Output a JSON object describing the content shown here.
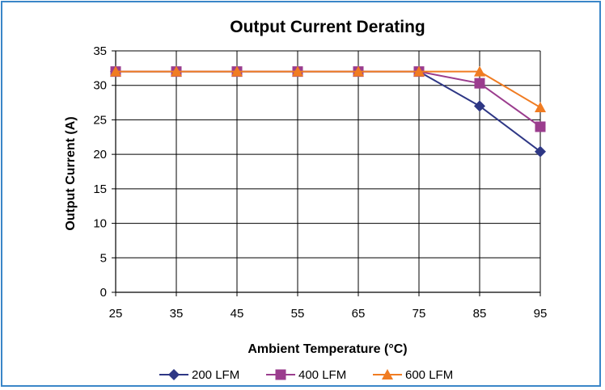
{
  "chart_data": {
    "type": "line",
    "title": "Output Current Derating",
    "xlabel": "Ambient Temperature (°C)",
    "ylabel": "Output Current (A)",
    "x": [
      25,
      35,
      45,
      55,
      65,
      75,
      85,
      95
    ],
    "ylim": [
      0,
      35
    ],
    "yticks": [
      0,
      5,
      10,
      15,
      20,
      25,
      30,
      35
    ],
    "grid": true,
    "legend": "bottom",
    "series": [
      {
        "name": "200 LFM",
        "marker": "diamond",
        "color": "#2e3785",
        "values": [
          32,
          32,
          32,
          32,
          32,
          32,
          27,
          20.4
        ]
      },
      {
        "name": "400 LFM",
        "marker": "square",
        "color": "#9b3d8e",
        "values": [
          32,
          32,
          32,
          32,
          32,
          32,
          30.3,
          24
        ]
      },
      {
        "name": "600 LFM",
        "marker": "triangle",
        "color": "#f07c22",
        "values": [
          32,
          32,
          32,
          32,
          32,
          32,
          32,
          26.8
        ]
      }
    ]
  }
}
